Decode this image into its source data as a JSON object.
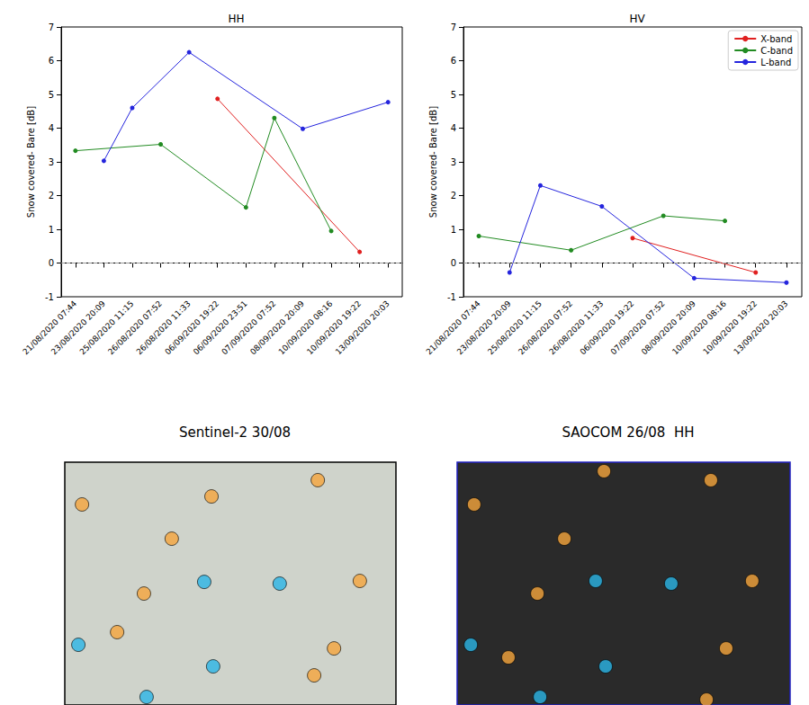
{
  "chart_data": [
    {
      "type": "line",
      "title": "HH",
      "y_label": "Snow covered- Bare [dB]",
      "categories": [
        "21/08/2020 07:44",
        "23/08/2020 20:09",
        "25/08/2020 11:15",
        "26/08/2020 07:52",
        "26/08/2020 11:33",
        "06/09/2020 19:22",
        "06/09/2020 23:51",
        "07/09/2020 07:52",
        "08/09/2020 20:09",
        "10/09/2020 08:16",
        "10/09/2020 19:22",
        "13/09/2020 20:03"
      ],
      "series": [
        {
          "color": "#e02020",
          "values": [
            null,
            null,
            null,
            null,
            null,
            4.87,
            null,
            null,
            null,
            null,
            0.33,
            null
          ]
        },
        {
          "color": "#228b22",
          "values": [
            3.33,
            null,
            null,
            3.52,
            null,
            null,
            1.65,
            4.3,
            null,
            0.95,
            null,
            null
          ]
        },
        {
          "color": "#2525dd",
          "values": [
            null,
            3.03,
            4.6,
            null,
            6.25,
            null,
            null,
            null,
            3.98,
            null,
            null,
            4.77
          ]
        }
      ],
      "ylim": [
        -1,
        7
      ],
      "yticks": [
        -1,
        0,
        1,
        2,
        3,
        4,
        5,
        6,
        7
      ],
      "hline": 0,
      "grid": false,
      "marker": "circle",
      "line_style": "solid"
    },
    {
      "type": "line",
      "title": "HV",
      "y_label": "Snow covered- Bare [dB]",
      "categories": [
        "21/08/2020 07:44",
        "23/08/2020 20:09",
        "25/08/2020 11:15",
        "26/08/2020 07:52",
        "26/08/2020 11:33",
        "06/09/2020 19:22",
        "07/09/2020 07:52",
        "08/09/2020 20:09",
        "10/09/2020 08:16",
        "10/09/2020 19:22",
        "13/09/2020 20:03"
      ],
      "series": [
        {
          "name": "X-band",
          "color": "#e02020",
          "values": [
            null,
            null,
            null,
            null,
            null,
            0.74,
            null,
            null,
            null,
            -0.28,
            null
          ]
        },
        {
          "name": "C-band",
          "color": "#228b22",
          "values": [
            0.8,
            null,
            null,
            0.38,
            null,
            null,
            1.4,
            null,
            1.25,
            null,
            null
          ]
        },
        {
          "name": "L-band",
          "color": "#2525dd",
          "values": [
            null,
            -0.28,
            2.3,
            null,
            1.68,
            null,
            null,
            -0.45,
            null,
            null,
            -0.58
          ]
        }
      ],
      "ylim": [
        -1,
        7
      ],
      "yticks": [
        -1,
        0,
        1,
        2,
        3,
        4,
        5,
        6,
        7
      ],
      "hline": 0,
      "grid": false,
      "legend": "upper right",
      "marker": "circle",
      "line_style": "solid"
    },
    {
      "type": "scatter",
      "title": "Sentinel-2 30/08",
      "xlim": [
        0,
        100
      ],
      "ylim": [
        0,
        100
      ],
      "tick_labels": false,
      "marker": "circle",
      "series": [
        {
          "color": "#f5a53c",
          "x": [
            44.3,
            76.4,
            5.2,
            32.3,
            23.9,
            89.1,
            15.8,
            81.3,
            75.3
          ],
          "y": [
            14.1,
            7.4,
            17.4,
            31.5,
            54.1,
            48.9,
            70.0,
            76.7,
            87.8
          ]
        },
        {
          "color": "#2bb5e6",
          "x": [
            42.1,
            64.9,
            4.1,
            44.8,
            24.7
          ],
          "y": [
            49.3,
            50.0,
            75.2,
            84.1,
            96.7
          ]
        }
      ]
    },
    {
      "type": "scatter",
      "title": "SAOCOM 26/08  HH",
      "xlim": [
        0,
        100
      ],
      "ylim": [
        0,
        100
      ],
      "tick_labels": false,
      "marker": "circle",
      "series": [
        {
          "color": "#f5a53c",
          "x": [
            44.1,
            76.2,
            5.1,
            32.2,
            24.1,
            88.6,
            15.4,
            80.8,
            74.9
          ],
          "y": [
            3.7,
            7.4,
            17.4,
            31.5,
            54.1,
            48.9,
            80.4,
            76.7,
            97.8
          ]
        },
        {
          "color": "#2bb5e6",
          "x": [
            41.6,
            64.3,
            4.1,
            44.6,
            24.9
          ],
          "y": [
            48.9,
            50.0,
            75.2,
            84.1,
            96.7
          ]
        }
      ]
    }
  ]
}
